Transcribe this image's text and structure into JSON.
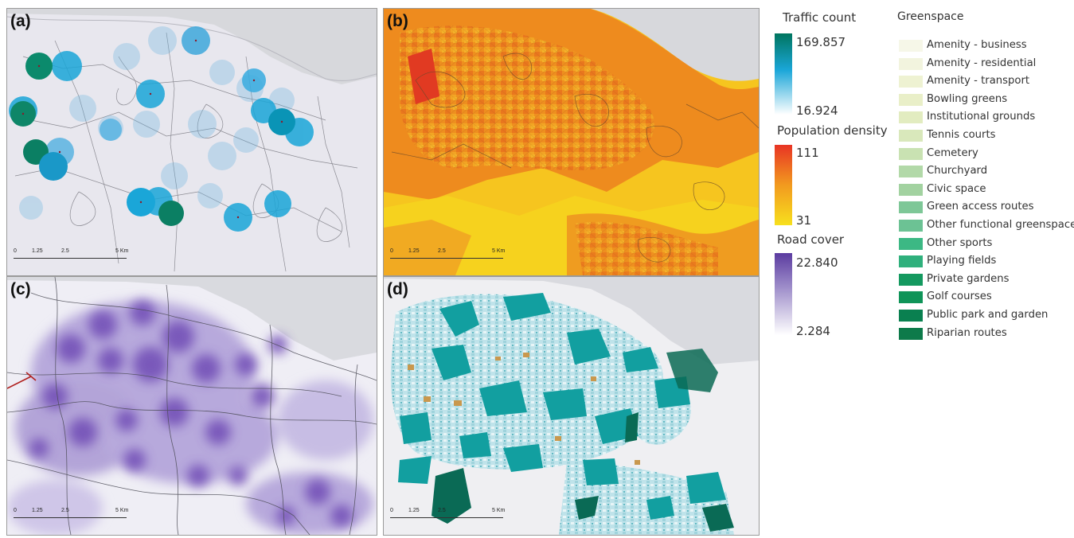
{
  "panels": [
    {
      "label": "(a)",
      "scale_ticks": [
        "0",
        "1.25",
        "2.5",
        "5 Km"
      ]
    },
    {
      "label": "(b)",
      "scale_ticks": [
        "0",
        "1.25",
        "2.5",
        "5 Km"
      ]
    },
    {
      "label": "(c)",
      "scale_ticks": [
        "0",
        "1.25",
        "2.5",
        "5 Km"
      ]
    },
    {
      "label": "(d)",
      "scale_ticks": [
        "0",
        "1.25",
        "2.5",
        "5 Km"
      ]
    }
  ],
  "legends": {
    "traffic": {
      "title": "Traffic count",
      "max": "169.857",
      "min": "16.924",
      "colors": [
        "#00755f",
        "#1aa6d8",
        "#ffffff"
      ]
    },
    "population": {
      "title": "Population density",
      "max": "111",
      "min": "31",
      "colors": [
        "#e83424",
        "#f29a1f",
        "#f7e01e"
      ]
    },
    "road": {
      "title": "Road cover",
      "max": "22.840",
      "min": "2.284",
      "colors": [
        "#5b3ba0",
        "#ffffff"
      ]
    },
    "greenspace": {
      "title": "Greenspace",
      "items": [
        {
          "label": "Amenity - business",
          "color": "#f6f7e8"
        },
        {
          "label": "Amenity - residential",
          "color": "#f2f4de"
        },
        {
          "label": "Amenity - transport",
          "color": "#eef2d2"
        },
        {
          "label": "Bowling greens",
          "color": "#e9efc8"
        },
        {
          "label": "Institutional grounds",
          "color": "#e2ecc0"
        },
        {
          "label": "Tennis courts",
          "color": "#d9e8bb"
        },
        {
          "label": "Cemetery",
          "color": "#c9e2b2"
        },
        {
          "label": "Churchyard",
          "color": "#b2d9a8"
        },
        {
          "label": "Civic space",
          "color": "#a2d2a0"
        },
        {
          "label": "Green access routes",
          "color": "#7ec797"
        },
        {
          "label": "Other functional greenspace",
          "color": "#6cc294"
        },
        {
          "label": "Other sports",
          "color": "#3cb884"
        },
        {
          "label": "Playing fields",
          "color": "#2fb07c"
        },
        {
          "label": "Private gardens",
          "color": "#14995f"
        },
        {
          "label": "Golf courses",
          "color": "#0f9458"
        },
        {
          "label": "Public park and garden",
          "color": "#0a8050"
        },
        {
          "label": "Riparian routes",
          "color": "#0d7a4a"
        }
      ]
    }
  }
}
